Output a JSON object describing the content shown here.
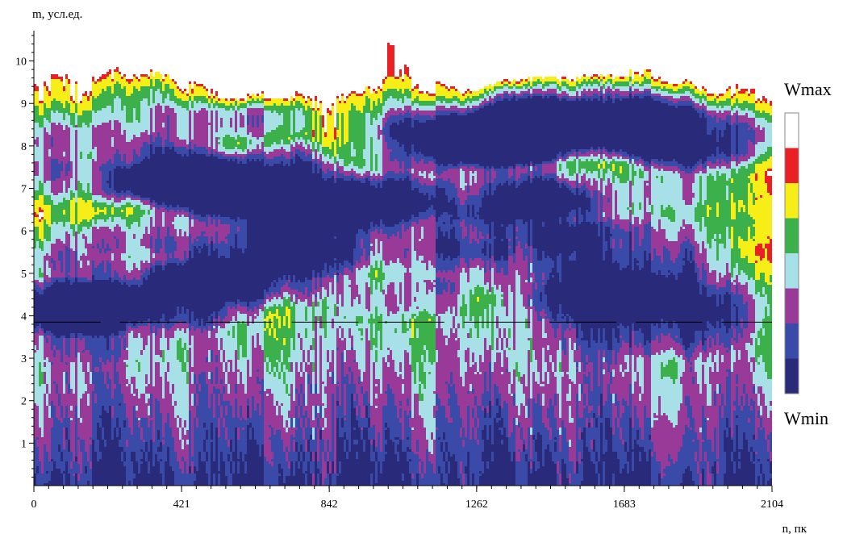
{
  "chart_data": {
    "type": "heatmap",
    "title": "",
    "ylabel": "m, усл.ед.",
    "xlabel": "n, пк",
    "xlim": [
      0,
      2104
    ],
    "ylim": [
      0,
      10.6
    ],
    "x_ticks": [
      0,
      421,
      842,
      1262,
      1683,
      2104
    ],
    "x_tick_labels": [
      "0",
      "421",
      "842",
      "1262",
      "1683",
      "2104"
    ],
    "y_ticks": [
      1,
      2,
      3,
      4,
      5,
      6,
      7,
      8,
      9,
      10
    ],
    "y_tick_labels": [
      "1",
      "2",
      "3",
      "4",
      "5",
      "6",
      "7",
      "8",
      "9",
      "10"
    ],
    "grid": false,
    "reference_level_m": 3.85,
    "legend": {
      "placement": "right",
      "max_label": "Wmax",
      "min_label": "Wmin",
      "colors": [
        "#2a2a7a",
        "#3a4aa8",
        "#9a3a98",
        "#a8e0e8",
        "#3cb04a",
        "#f6ee16",
        "#ea2024",
        "#ffffff"
      ]
    }
  }
}
